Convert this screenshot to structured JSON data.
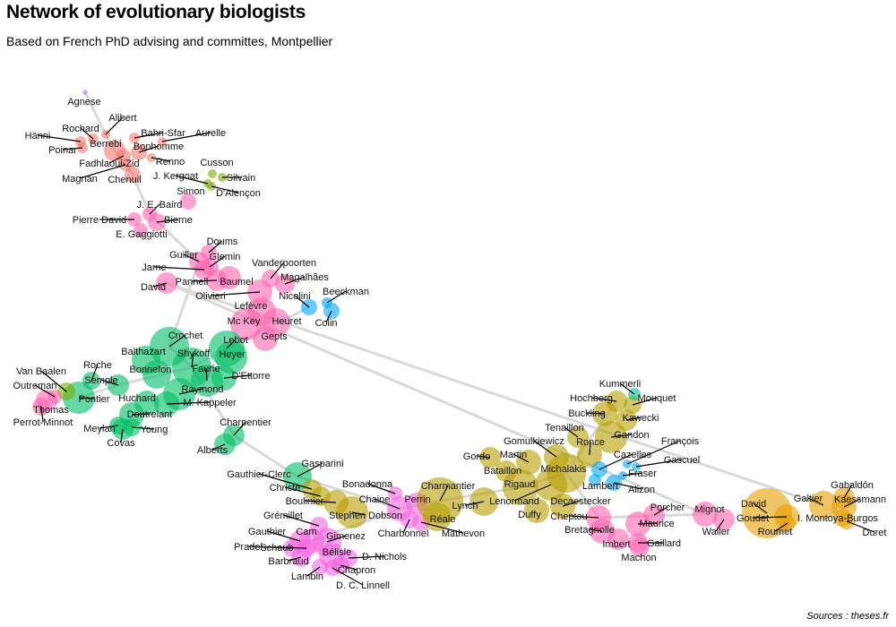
{
  "title": "Network of evolutionary biologists",
  "subtitle": "Based on French PhD advising and committes, Montpellier",
  "source": "Sources : theses.fr",
  "chart_data": {
    "type": "network",
    "legend": "none",
    "grid": false,
    "colors": {
      "red": "#f8766d",
      "green": "#7cae00",
      "green2": "#00be67",
      "teal": "#00c19a",
      "blue": "#00a9ff",
      "lilac": "#c77cff",
      "magenta": "#f564e3",
      "pink": "#ff64b0",
      "olive": "#b79f00",
      "orange": "#e69f00",
      "edge": "#d9d9d9"
    },
    "edges": [
      [
        "Agnese",
        "Alibert"
      ],
      [
        "Alibert",
        "Berrebi"
      ],
      [
        "Berrebi",
        "Chenuil"
      ],
      [
        "Chenuil",
        "J. E. Baird"
      ],
      [
        "J. E. Baird",
        "Guiller"
      ],
      [
        "Guiller",
        "Crochet"
      ],
      [
        "Crochet",
        "Shykoff"
      ],
      [
        "Shykoff",
        "Charpentier"
      ],
      [
        "Charpentier",
        "Gasparini"
      ],
      [
        "Gasparini",
        "Chaine"
      ],
      [
        "Chaine",
        "Charmantier"
      ],
      [
        "Charmantier",
        "Rigaud"
      ],
      [
        "Rigaud",
        "Michalakis"
      ],
      [
        "Michalakis",
        "Cheptou"
      ],
      [
        "Cheptou",
        "Mignot"
      ],
      [
        "Mignot",
        "David"
      ],
      [
        "David",
        "Galtier"
      ],
      [
        "Shykoff",
        "Lebot"
      ],
      [
        "Lebot",
        "Nicolini"
      ],
      [
        "Shykoff",
        "Semple"
      ],
      [
        "Semple",
        "Pontier"
      ],
      [
        "Michalakis",
        "Hochberg"
      ],
      [
        "Chaine",
        "Cam"
      ]
    ],
    "nodes": [
      {
        "name": "Agnese",
        "c": "lilac",
        "s": 3
      },
      {
        "name": "Alibert",
        "c": "red",
        "s": 5
      },
      {
        "name": "Rochard",
        "c": "red",
        "s": 6
      },
      {
        "name": "Hänni",
        "c": "red",
        "s": 6
      },
      {
        "name": "Berrebi",
        "c": "red",
        "s": 12
      },
      {
        "name": "Bahri-Sfar",
        "c": "red",
        "s": 6
      },
      {
        "name": "Aurelle",
        "c": "red",
        "s": 5
      },
      {
        "name": "Bonhomme",
        "c": "red",
        "s": 9
      },
      {
        "name": "Poinar",
        "c": "red",
        "s": 6
      },
      {
        "name": "Renno",
        "c": "red",
        "s": 5
      },
      {
        "name": "Fadhlaoui-Zid",
        "c": "red",
        "s": 8
      },
      {
        "name": "Magnan",
        "c": "red",
        "s": 7
      },
      {
        "name": "Chenuil",
        "c": "red",
        "s": 9
      },
      {
        "name": "Cusson",
        "c": "green",
        "s": 5
      },
      {
        "name": "J. Kergoat",
        "c": "green",
        "s": 5
      },
      {
        "name": "Silvain",
        "c": "green",
        "s": 5
      },
      {
        "name": "D'Alençon",
        "c": "green",
        "s": 5
      },
      {
        "name": "Simon",
        "c": "pink",
        "s": 9
      },
      {
        "name": "J. E. Baird",
        "c": "pink",
        "s": 8
      },
      {
        "name": "Pierre David",
        "c": "pink",
        "s": 8
      },
      {
        "name": "Bierne",
        "c": "pink",
        "s": 10
      },
      {
        "name": "E. Gaggiotti",
        "c": "pink",
        "s": 8
      },
      {
        "name": "Doums",
        "c": "pink",
        "s": 9
      },
      {
        "name": "Guiller",
        "c": "pink",
        "s": 11
      },
      {
        "name": "Glemin",
        "c": "pink",
        "s": 10
      },
      {
        "name": "Jarne",
        "c": "pink",
        "s": 11
      },
      {
        "name": "Pannell",
        "c": "pink",
        "s": 12
      },
      {
        "name": "Baumel",
        "c": "pink",
        "s": 13
      },
      {
        "name": "David",
        "c": "pink",
        "s": 12
      },
      {
        "name": "Vanderpoorten",
        "c": "pink",
        "s": 10
      },
      {
        "name": "Magalhães",
        "c": "pink",
        "s": 11
      },
      {
        "name": "Olivieri",
        "c": "pink",
        "s": 14
      },
      {
        "name": "Lefèvre",
        "c": "pink",
        "s": 16
      },
      {
        "name": "Mc Key",
        "c": "pink",
        "s": 18
      },
      {
        "name": "Heuret",
        "c": "pink",
        "s": 16
      },
      {
        "name": "Gepts",
        "c": "pink",
        "s": 14
      },
      {
        "name": "Nicolini",
        "c": "blue",
        "s": 9
      },
      {
        "name": "Beeckman",
        "c": "blue",
        "s": 6
      },
      {
        "name": "Colin",
        "c": "blue",
        "s": 9
      },
      {
        "name": "Crochet",
        "c": "green2",
        "s": 22
      },
      {
        "name": "Lebot",
        "c": "green2",
        "s": 20
      },
      {
        "name": "Heyer",
        "c": "green2",
        "s": 18
      },
      {
        "name": "Balthazart",
        "c": "green2",
        "s": 16
      },
      {
        "name": "Shykoff",
        "c": "green2",
        "s": 22
      },
      {
        "name": "Bonnefon",
        "c": "green2",
        "s": 16
      },
      {
        "name": "Faurie",
        "c": "green2",
        "s": 18
      },
      {
        "name": "D'Ettorre",
        "c": "green2",
        "s": 14
      },
      {
        "name": "Semple",
        "c": "green2",
        "s": 12
      },
      {
        "name": "Raymond",
        "c": "green2",
        "s": 18
      },
      {
        "name": "Huchard",
        "c": "green2",
        "s": 14
      },
      {
        "name": "M. Kappeler",
        "c": "green2",
        "s": 14
      },
      {
        "name": "Doutrelant",
        "c": "green2",
        "s": 14
      },
      {
        "name": "Meylan",
        "c": "green2",
        "s": 10
      },
      {
        "name": "Young",
        "c": "green2",
        "s": 10
      },
      {
        "name": "Covas",
        "c": "green2",
        "s": 12
      },
      {
        "name": "Roche",
        "c": "green2",
        "s": 10
      },
      {
        "name": "Pontier",
        "c": "green2",
        "s": 18
      },
      {
        "name": "Van Baalen",
        "c": "green",
        "s": 10
      },
      {
        "name": "Outreman",
        "c": "pink",
        "s": 8
      },
      {
        "name": "Thomas",
        "c": "pink",
        "s": 12
      },
      {
        "name": "Perrot-Minnot",
        "c": "pink",
        "s": 10
      },
      {
        "name": "Charpentier",
        "c": "green2",
        "s": 12
      },
      {
        "name": "Alberts",
        "c": "green2",
        "s": 12
      },
      {
        "name": "Gasparini",
        "c": "green2",
        "s": 16
      },
      {
        "name": "Gauthier-Clerc",
        "c": "olive",
        "s": 11
      },
      {
        "name": "Christe",
        "c": "olive",
        "s": 11
      },
      {
        "name": "Boulinier",
        "c": "olive",
        "s": 14
      },
      {
        "name": "Stephen Dobson",
        "c": "olive",
        "s": 18
      },
      {
        "name": "Bonadonna",
        "c": "magenta",
        "s": 8
      },
      {
        "name": "Chaine",
        "c": "magenta",
        "s": 14
      },
      {
        "name": "Perrin",
        "c": "magenta",
        "s": 12
      },
      {
        "name": "Charbonnel",
        "c": "magenta",
        "s": 10
      },
      {
        "name": "Mathevon",
        "c": "magenta",
        "s": 10
      },
      {
        "name": "Charmantier",
        "c": "olive",
        "s": 26
      },
      {
        "name": "Réale",
        "c": "olive",
        "s": 16
      },
      {
        "name": "Lynch",
        "c": "olive",
        "s": 16
      },
      {
        "name": "Grémillet",
        "c": "magenta",
        "s": 10
      },
      {
        "name": "Gauthier",
        "c": "magenta",
        "s": 12
      },
      {
        "name": "Cam",
        "c": "magenta",
        "s": 14
      },
      {
        "name": "Gimenez",
        "c": "magenta",
        "s": 16
      },
      {
        "name": "Pradel",
        "c": "magenta",
        "s": 10
      },
      {
        "name": "Schaub",
        "c": "magenta",
        "s": 10
      },
      {
        "name": "Barbraud",
        "c": "magenta",
        "s": 11
      },
      {
        "name": "Bélisle",
        "c": "magenta",
        "s": 14
      },
      {
        "name": "D. Nichols",
        "c": "magenta",
        "s": 10
      },
      {
        "name": "Chapron",
        "c": "magenta",
        "s": 10
      },
      {
        "name": "Lambin",
        "c": "magenta",
        "s": 9
      },
      {
        "name": "D. C. Linnell",
        "c": "magenta",
        "s": 9
      },
      {
        "name": "Rigaud",
        "c": "olive",
        "s": 20
      },
      {
        "name": "Lenormand",
        "c": "olive",
        "s": 18
      },
      {
        "name": "Duffy",
        "c": "olive",
        "s": 14
      },
      {
        "name": "Decaestecker",
        "c": "olive",
        "s": 14
      },
      {
        "name": "Bataillon",
        "c": "olive",
        "s": 12
      },
      {
        "name": "Gordo",
        "c": "olive",
        "s": 12
      },
      {
        "name": "Martin",
        "c": "olive",
        "s": 14
      },
      {
        "name": "Michalakis",
        "c": "olive",
        "s": 22
      },
      {
        "name": "Gomulkiewicz",
        "c": "olive",
        "s": 14
      },
      {
        "name": "Ronce",
        "c": "olive",
        "s": 14
      },
      {
        "name": "Tenaillon",
        "c": "olive",
        "s": 12
      },
      {
        "name": "Gandon",
        "c": "olive",
        "s": 18
      },
      {
        "name": "Buckling",
        "c": "olive",
        "s": 14
      },
      {
        "name": "Kawecki",
        "c": "olive",
        "s": 12
      },
      {
        "name": "Hochberg",
        "c": "olive",
        "s": 12
      },
      {
        "name": "Mouquet",
        "c": "olive",
        "s": 10
      },
      {
        "name": "Kummerli",
        "c": "teal",
        "s": 7
      },
      {
        "name": "Cazelles",
        "c": "blue",
        "s": 9
      },
      {
        "name": "François",
        "c": "blue",
        "s": 5
      },
      {
        "name": "Gascuel",
        "c": "blue",
        "s": 5
      },
      {
        "name": "Fraser",
        "c": "blue",
        "s": 5
      },
      {
        "name": "Lambert",
        "c": "blue",
        "s": 7
      },
      {
        "name": "Alizon",
        "c": "blue",
        "s": 9
      },
      {
        "name": "Cheptou",
        "c": "pink",
        "s": 14
      },
      {
        "name": "Bretagnolle",
        "c": "pink",
        "s": 14
      },
      {
        "name": "Porcher",
        "c": "pink",
        "s": 12
      },
      {
        "name": "Maurice",
        "c": "pink",
        "s": 14
      },
      {
        "name": "Imbert",
        "c": "pink",
        "s": 12
      },
      {
        "name": "Gaillard",
        "c": "pink",
        "s": 11
      },
      {
        "name": "Machon",
        "c": "pink",
        "s": 11
      },
      {
        "name": "Mignot",
        "c": "pink",
        "s": 14
      },
      {
        "name": "Waller",
        "c": "pink",
        "s": 12
      },
      {
        "name": "David",
        "c": "orange",
        "s": 28
      },
      {
        "name": "Goudet",
        "c": "orange",
        "s": 14
      },
      {
        "name": "Roumet",
        "c": "orange",
        "s": 9
      },
      {
        "name": "Galtier",
        "c": "orange",
        "s": 16
      },
      {
        "name": "Gabaldón",
        "c": "orange",
        "s": 12
      },
      {
        "name": "Kaessmann",
        "c": "orange",
        "s": 14
      },
      {
        "name": "I. Montoya-Burgos",
        "c": "orange",
        "s": 10
      },
      {
        "name": "Duret",
        "c": "orange",
        "s": 9
      }
    ]
  }
}
